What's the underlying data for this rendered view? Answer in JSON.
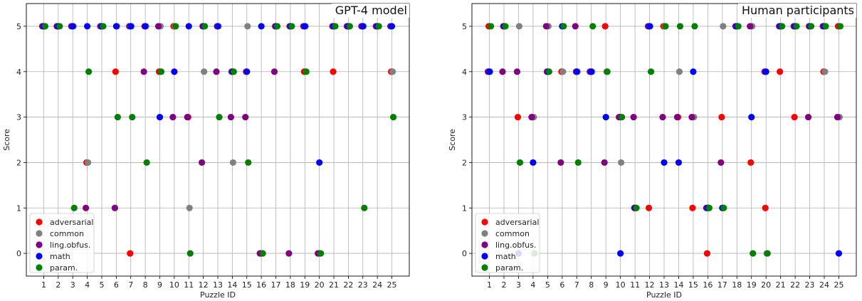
{
  "colors": {
    "adversarial": "#ff0000",
    "common": "#808080",
    "ling.obfus.": "#800080",
    "math": "#0000ff",
    "param.": "#008000"
  },
  "chart_data": [
    {
      "type": "scatter",
      "title": "GPT-4 model",
      "xlabel": "Puzzle ID",
      "ylabel": "Score",
      "x_ticks": [
        1,
        2,
        3,
        4,
        5,
        6,
        7,
        8,
        9,
        10,
        11,
        12,
        13,
        14,
        15,
        16,
        17,
        18,
        19,
        20,
        21,
        22,
        23,
        24,
        25
      ],
      "y_ticks": [
        0,
        1,
        2,
        3,
        4,
        5
      ],
      "xlim": [
        -0.2,
        26.2
      ],
      "ylim": [
        -0.5,
        5.5
      ],
      "grid": "vertical and horizontal",
      "legend": "bottom-left",
      "series": [
        {
          "name": "adversarial",
          "points": [
            [
              1,
              5
            ],
            [
              2,
              5
            ],
            [
              3,
              5
            ],
            [
              4,
              2
            ],
            [
              5,
              5
            ],
            [
              6,
              4
            ],
            [
              7,
              0
            ],
            [
              8,
              5
            ],
            [
              9,
              4
            ],
            [
              10,
              5
            ],
            [
              11,
              3
            ],
            [
              12,
              5
            ],
            [
              13,
              5
            ],
            [
              14,
              4
            ],
            [
              15,
              4
            ],
            [
              16,
              0
            ],
            [
              17,
              5
            ],
            [
              18,
              5
            ],
            [
              19,
              4
            ],
            [
              20,
              0
            ],
            [
              21,
              4
            ],
            [
              22,
              5
            ],
            [
              23,
              5
            ],
            [
              24,
              5
            ],
            [
              25,
              4
            ]
          ]
        },
        {
          "name": "common",
          "points": [
            [
              1,
              5
            ],
            [
              2,
              5
            ],
            [
              3,
              5
            ],
            [
              4,
              2
            ],
            [
              5,
              5
            ],
            [
              6,
              5
            ],
            [
              7,
              5
            ],
            [
              8,
              5
            ],
            [
              9,
              5
            ],
            [
              10,
              5
            ],
            [
              11,
              1
            ],
            [
              12,
              4
            ],
            [
              13,
              5
            ],
            [
              14,
              2
            ],
            [
              15,
              5
            ],
            [
              16,
              0
            ],
            [
              17,
              5
            ],
            [
              18,
              5
            ],
            [
              19,
              5
            ],
            [
              20,
              0
            ],
            [
              21,
              5
            ],
            [
              22,
              5
            ],
            [
              23,
              5
            ],
            [
              24,
              5
            ],
            [
              25,
              4
            ]
          ]
        },
        {
          "name": "ling.obfus.",
          "points": [
            [
              1,
              5
            ],
            [
              2,
              5
            ],
            [
              3,
              5
            ],
            [
              4,
              1
            ],
            [
              5,
              5
            ],
            [
              6,
              1
            ],
            [
              7,
              5
            ],
            [
              8,
              4
            ],
            [
              9,
              5
            ],
            [
              10,
              3
            ],
            [
              11,
              3
            ],
            [
              12,
              2
            ],
            [
              13,
              4
            ],
            [
              14,
              3
            ],
            [
              15,
              3
            ],
            [
              16,
              0
            ],
            [
              17,
              4
            ],
            [
              18,
              0
            ],
            [
              19,
              5
            ],
            [
              20,
              0
            ],
            [
              21,
              5
            ],
            [
              22,
              5
            ],
            [
              23,
              5
            ],
            [
              24,
              5
            ],
            [
              25,
              5
            ]
          ]
        },
        {
          "name": "math",
          "points": [
            [
              1,
              5
            ],
            [
              2,
              5
            ],
            [
              3,
              5
            ],
            [
              4,
              5
            ],
            [
              5,
              5
            ],
            [
              6,
              5
            ],
            [
              7,
              5
            ],
            [
              8,
              5
            ],
            [
              9,
              3
            ],
            [
              10,
              4
            ],
            [
              11,
              5
            ],
            [
              12,
              5
            ],
            [
              13,
              5
            ],
            [
              14,
              4
            ],
            [
              15,
              4
            ],
            [
              16,
              5
            ],
            [
              17,
              5
            ],
            [
              18,
              5
            ],
            [
              19,
              5
            ],
            [
              20,
              2
            ],
            [
              21,
              5
            ],
            [
              22,
              5
            ],
            [
              23,
              5
            ],
            [
              24,
              5
            ],
            [
              25,
              5
            ]
          ]
        },
        {
          "name": "param.",
          "points": [
            [
              1,
              5
            ],
            [
              2,
              5
            ],
            [
              3,
              1
            ],
            [
              4,
              4
            ],
            [
              5,
              5
            ],
            [
              6,
              3
            ],
            [
              7,
              3
            ],
            [
              8,
              2
            ],
            [
              9,
              4
            ],
            [
              10,
              5
            ],
            [
              11,
              0
            ],
            [
              12,
              5
            ],
            [
              13,
              3
            ],
            [
              14,
              4
            ],
            [
              15,
              2
            ],
            [
              16,
              0
            ],
            [
              17,
              5
            ],
            [
              18,
              5
            ],
            [
              19,
              4
            ],
            [
              20,
              0
            ],
            [
              21,
              5
            ],
            [
              22,
              5
            ],
            [
              23,
              1
            ],
            [
              24,
              5
            ],
            [
              25,
              3
            ]
          ]
        }
      ]
    },
    {
      "type": "scatter",
      "title": "Human participants",
      "xlabel": "Puzzle ID",
      "ylabel": "Score",
      "x_ticks": [
        1,
        2,
        3,
        4,
        5,
        6,
        7,
        8,
        9,
        10,
        11,
        12,
        13,
        14,
        15,
        16,
        17,
        18,
        19,
        20,
        21,
        22,
        23,
        24,
        25
      ],
      "y_ticks": [
        0,
        1,
        2,
        3,
        4,
        5
      ],
      "xlim": [
        -0.2,
        26.2
      ],
      "ylim": [
        -0.5,
        5.5
      ],
      "grid": "vertical and horizontal",
      "legend": "bottom-left",
      "series": [
        {
          "name": "adversarial",
          "points": [
            [
              1,
              5
            ],
            [
              2,
              5
            ],
            [
              3,
              3
            ],
            [
              4,
              3
            ],
            [
              5,
              4
            ],
            [
              6,
              4
            ],
            [
              7,
              4
            ],
            [
              8,
              4
            ],
            [
              9,
              5
            ],
            [
              10,
              3
            ],
            [
              11,
              1
            ],
            [
              12,
              1
            ],
            [
              13,
              5
            ],
            [
              14,
              3
            ],
            [
              15,
              1
            ],
            [
              16,
              0
            ],
            [
              17,
              3
            ],
            [
              18,
              5
            ],
            [
              19,
              2
            ],
            [
              20,
              1
            ],
            [
              21,
              4
            ],
            [
              22,
              3
            ],
            [
              23,
              5
            ],
            [
              24,
              4
            ],
            [
              25,
              5
            ]
          ]
        },
        {
          "name": "common",
          "points": [
            [
              1,
              4
            ],
            [
              2,
              5
            ],
            [
              3,
              5
            ],
            [
              4,
              3
            ],
            [
              5,
              5
            ],
            [
              6,
              4
            ],
            [
              7,
              4
            ],
            [
              8,
              4
            ],
            [
              9,
              4
            ],
            [
              10,
              2
            ],
            [
              11,
              1
            ],
            [
              12,
              5
            ],
            [
              13,
              5
            ],
            [
              14,
              4
            ],
            [
              15,
              3
            ],
            [
              16,
              1
            ],
            [
              17,
              5
            ],
            [
              18,
              5
            ],
            [
              19,
              5
            ],
            [
              20,
              0
            ],
            [
              21,
              5
            ],
            [
              22,
              5
            ],
            [
              23,
              5
            ],
            [
              24,
              4
            ],
            [
              25,
              3
            ]
          ]
        },
        {
          "name": "ling.obfus.",
          "points": [
            [
              1,
              4
            ],
            [
              2,
              4
            ],
            [
              3,
              4
            ],
            [
              4,
              3
            ],
            [
              5,
              5
            ],
            [
              6,
              2
            ],
            [
              7,
              5
            ],
            [
              8,
              4
            ],
            [
              9,
              2
            ],
            [
              10,
              3
            ],
            [
              11,
              3
            ],
            [
              12,
              5
            ],
            [
              13,
              3
            ],
            [
              14,
              3
            ],
            [
              15,
              3
            ],
            [
              16,
              1
            ],
            [
              17,
              2
            ],
            [
              18,
              5
            ],
            [
              19,
              5
            ],
            [
              20,
              4
            ],
            [
              21,
              5
            ],
            [
              22,
              5
            ],
            [
              23,
              3
            ],
            [
              24,
              5
            ],
            [
              25,
              3
            ]
          ]
        },
        {
          "name": "math",
          "points": [
            [
              1,
              4
            ],
            [
              2,
              5
            ],
            [
              3,
              0
            ],
            [
              4,
              2
            ],
            [
              5,
              4
            ],
            [
              6,
              5
            ],
            [
              7,
              4
            ],
            [
              8,
              4
            ],
            [
              9,
              3
            ],
            [
              10,
              0
            ],
            [
              11,
              1
            ],
            [
              12,
              5
            ],
            [
              13,
              2
            ],
            [
              14,
              2
            ],
            [
              15,
              4
            ],
            [
              16,
              1
            ],
            [
              17,
              1
            ],
            [
              18,
              5
            ],
            [
              19,
              3
            ],
            [
              20,
              4
            ],
            [
              21,
              5
            ],
            [
              22,
              5
            ],
            [
              23,
              5
            ],
            [
              24,
              5
            ],
            [
              25,
              0
            ]
          ]
        },
        {
          "name": "param.",
          "points": [
            [
              1,
              5
            ],
            [
              2,
              5
            ],
            [
              3,
              2
            ],
            [
              4,
              0
            ],
            [
              5,
              4
            ],
            [
              6,
              5
            ],
            [
              7,
              2
            ],
            [
              8,
              5
            ],
            [
              9,
              4
            ],
            [
              10,
              3
            ],
            [
              11,
              1
            ],
            [
              12,
              4
            ],
            [
              13,
              5
            ],
            [
              14,
              5
            ],
            [
              15,
              5
            ],
            [
              16,
              1
            ],
            [
              17,
              1
            ],
            [
              18,
              5
            ],
            [
              19,
              0
            ],
            [
              20,
              0
            ],
            [
              21,
              5
            ],
            [
              22,
              5
            ],
            [
              23,
              5
            ],
            [
              24,
              5
            ],
            [
              25,
              5
            ]
          ]
        }
      ]
    }
  ]
}
